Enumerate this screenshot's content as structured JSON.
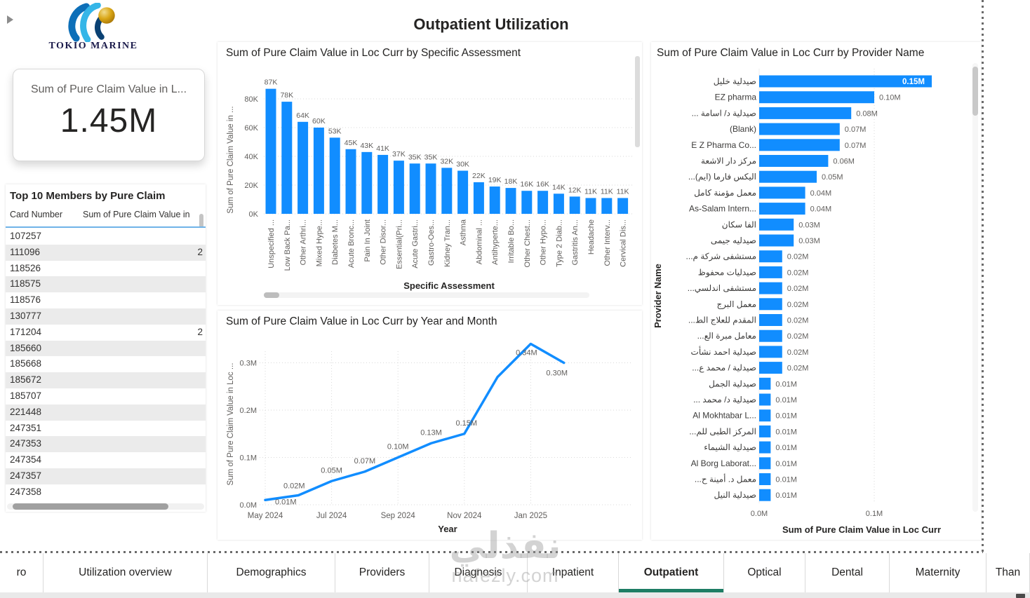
{
  "brand": {
    "name": "TOKIO MARINE"
  },
  "page": {
    "title": "Outpatient Utilization"
  },
  "kpi": {
    "title": "Sum of Pure Claim Value in L...",
    "value": "1.45M"
  },
  "members_table": {
    "title": "Top 10 Members by Pure Claim",
    "columns": [
      "Card Number",
      "Sum of Pure Claim Value in"
    ],
    "rows": [
      {
        "card": "107257",
        "value": ""
      },
      {
        "card": "111096",
        "value": "2"
      },
      {
        "card": "118526",
        "value": ""
      },
      {
        "card": "118575",
        "value": ""
      },
      {
        "card": "118576",
        "value": ""
      },
      {
        "card": "130777",
        "value": ""
      },
      {
        "card": "171204",
        "value": "2"
      },
      {
        "card": "185660",
        "value": ""
      },
      {
        "card": "185668",
        "value": ""
      },
      {
        "card": "185672",
        "value": ""
      },
      {
        "card": "185707",
        "value": ""
      },
      {
        "card": "221448",
        "value": ""
      },
      {
        "card": "247351",
        "value": ""
      },
      {
        "card": "247353",
        "value": ""
      },
      {
        "card": "247354",
        "value": ""
      },
      {
        "card": "247357",
        "value": ""
      },
      {
        "card": "247358",
        "value": ""
      }
    ]
  },
  "chart_data": [
    {
      "type": "bar",
      "title": "Sum of Pure Claim Value in Loc Curr by Specific Assessment",
      "xlabel": "Specific Assessment",
      "ylabel": "Sum of Pure Claim Value in ...",
      "unit": "K",
      "categories": [
        "Unspecified ...",
        "Low Back Pa...",
        "Other Arthri...",
        "Mixed Hype...",
        "Diabetes M...",
        "Acute Bronc...",
        "Pain In Joint",
        "Other Disor...",
        "Essential(Pri...",
        "Acute Gastri...",
        "Gastro-Oes...",
        "Kidney Tran...",
        "Asthma",
        "Abdominal ...",
        "Antihyperte...",
        "Irritable Bo...",
        "Other Chest...",
        "Other Hypo...",
        "Type 2 Diab...",
        "Gastritis An...",
        "Headache",
        "Other Interv...",
        "Cervical Dis..."
      ],
      "values": [
        87,
        78,
        64,
        60,
        53,
        45,
        43,
        41,
        37,
        35,
        35,
        32,
        30,
        22,
        19,
        18,
        16,
        16,
        14,
        12,
        11,
        11,
        11
      ],
      "value_labels": [
        "87K",
        "78K",
        "64K",
        "60K",
        "53K",
        "45K",
        "43K",
        "41K",
        "37K",
        "35K",
        "35K",
        "32K",
        "30K",
        "22K",
        "19K",
        "18K",
        "16K",
        "16K",
        "14K",
        "12K",
        "11K",
        "11K",
        "11K"
      ],
      "yticks": [
        {
          "v": 0,
          "label": "0K"
        },
        {
          "v": 20,
          "label": "20K"
        },
        {
          "v": 40,
          "label": "40K"
        },
        {
          "v": 60,
          "label": "60K"
        },
        {
          "v": 80,
          "label": "80K"
        }
      ],
      "ylim": [
        0,
        90
      ],
      "grid": "dotted-horizontal",
      "legend": "none"
    },
    {
      "type": "line",
      "title": "Sum of Pure Claim Value in Loc Curr by Year and Month",
      "xlabel": "Year",
      "ylabel": "Sum of Pure Claim Value in Loc ...",
      "unit": "M",
      "x": [
        "May 2024",
        "Jun 2024",
        "Jul 2024",
        "Aug 2024",
        "Sep 2024",
        "Oct 2024",
        "Nov 2024",
        "Dec 2024",
        "Jan 2025",
        "Feb 2025"
      ],
      "values": [
        0.01,
        0.02,
        0.05,
        0.07,
        0.1,
        0.13,
        0.15,
        0.27,
        0.34,
        0.3
      ],
      "value_labels": [
        "0.01M",
        "0.02M",
        "0.05M",
        "0.07M",
        "0.10M",
        "0.13M",
        "0.15M",
        null,
        "0.34M",
        "0.30M"
      ],
      "xticks": [
        "May 2024",
        "Jul 2024",
        "Sep 2024",
        "Nov 2024",
        "Jan 2025"
      ],
      "yticks": [
        {
          "v": 0.0,
          "label": "0.0M"
        },
        {
          "v": 0.1,
          "label": "0.1M"
        },
        {
          "v": 0.2,
          "label": "0.2M"
        },
        {
          "v": 0.3,
          "label": "0.3M"
        }
      ],
      "ylim": [
        0,
        0.35
      ],
      "grid": "dotted-both",
      "legend": "none"
    },
    {
      "type": "bar-horizontal",
      "title": "Sum of Pure Claim Value in Loc Curr by Provider Name",
      "xlabel": "Sum of Pure Claim Value in Loc Curr",
      "ylabel": "Provider Name",
      "unit": "M",
      "categories": [
        "صيدلية خليل",
        "EZ pharma",
        "صيدلية د/ اسامة ...",
        "(Blank)",
        "E Z Pharma Co...",
        "مركز دار الاشعة",
        "اليكس فارما (ايم)...",
        "معمل مؤمنة كامل",
        "As-Salam Intern...",
        "الفا سكان",
        "صيدليه جيمى",
        "مستشفى شركة م...",
        "صيدليات محفوظ",
        "مستشفى اندلسي...",
        "معمل البرج",
        "المقدم للعلاج الط...",
        "معامل مبرة الع...",
        "صيدلية احمد نشأت",
        "صيدلية / محمد ع...",
        "صيدلية الجمل",
        "صيدلية د/ محمد ...",
        "Al Mokhtabar L...",
        "المركز الطبى للم...",
        "صيدلية الشيماء",
        "Al Borg Laborat...",
        "معمل د. أمينة ح...",
        "صيدلية النيل"
      ],
      "values": [
        0.15,
        0.1,
        0.08,
        0.07,
        0.07,
        0.06,
        0.05,
        0.04,
        0.04,
        0.03,
        0.03,
        0.02,
        0.02,
        0.02,
        0.02,
        0.02,
        0.02,
        0.02,
        0.02,
        0.01,
        0.01,
        0.01,
        0.01,
        0.01,
        0.01,
        0.01,
        0.01
      ],
      "value_labels": [
        "0.15M",
        "0.10M",
        "0.08M",
        "0.07M",
        "0.07M",
        "0.06M",
        "0.05M",
        "0.04M",
        "0.04M",
        "0.03M",
        "0.03M",
        "0.02M",
        "0.02M",
        "0.02M",
        "0.02M",
        "0.02M",
        "0.02M",
        "0.02M",
        "0.02M",
        "0.01M",
        "0.01M",
        "0.01M",
        "0.01M",
        "0.01M",
        "0.01M",
        "0.01M",
        "0.01M"
      ],
      "xticks": [
        {
          "v": 0.0,
          "label": "0.0M"
        },
        {
          "v": 0.1,
          "label": "0.1M"
        }
      ],
      "xlim": [
        0,
        0.17
      ],
      "grid": "dotted-vertical",
      "legend": "none"
    }
  ],
  "tabs": {
    "items": [
      "ro",
      "Utilization overview",
      "Demographics",
      "Providers",
      "Diagnosis",
      "Inpatient",
      "Outpatient",
      "Optical",
      "Dental",
      "Maternity",
      "Than"
    ],
    "active": "Outpatient"
  },
  "watermark": {
    "line1": "نفذلي",
    "line2": "nafezly.com"
  },
  "colors": {
    "bar_blue": "#118DFF",
    "active_tab_underline": "#1d7d64",
    "axis_text": "#605E5C",
    "title_text": "#252423",
    "table_header_rule": "#6fb3e8"
  }
}
